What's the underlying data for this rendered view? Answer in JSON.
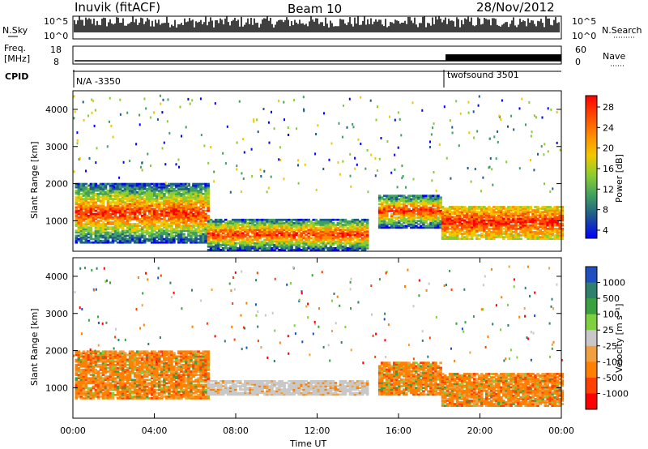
{
  "header": {
    "station": "Inuvik (fitACF)",
    "beam": "Beam 10",
    "date": "28/Nov/2012"
  },
  "strip": {
    "nsky_label": "N.Sky",
    "nsky_ticks": [
      "10^5",
      "10^0"
    ],
    "nsearch_label": "N.Search",
    "nsearch_ticks": [
      "10^5",
      "10^0"
    ],
    "freq_label": "Freq.",
    "freq_unit": "[MHz]",
    "freq_ticks": [
      "18",
      "8"
    ],
    "nave_label": "Nave",
    "nave_ticks": [
      "60",
      "0"
    ],
    "cpid_label": "CPID",
    "cpid_segments": [
      {
        "name": "N/A -3350",
        "start_hour": 0
      },
      {
        "name": "twofsound 3501",
        "start_hour": 18.2
      }
    ]
  },
  "chart_data": [
    {
      "type": "heatmap",
      "title": "",
      "ylabel": "Slant Range [km]",
      "xlabel": "",
      "xlim": [
        0,
        24
      ],
      "ylim": [
        180,
        4500
      ],
      "yticks": [
        "1000",
        "2000",
        "3000",
        "4000"
      ],
      "colorbar": {
        "label": "Power [dB]",
        "ticks": [
          "28",
          "24",
          "20",
          "16",
          "12",
          "8",
          "4"
        ],
        "colors": [
          "#ff0000",
          "#ff4a00",
          "#ff8c00",
          "#f0c800",
          "#8acd30",
          "#3fa060",
          "#1f5a8c",
          "#0000ff"
        ]
      },
      "regions": [
        {
          "x": [
            0.1,
            6.6
          ],
          "y": [
            400,
            2000
          ],
          "level": "high"
        },
        {
          "x": [
            6.6,
            14.5
          ],
          "y": [
            200,
            1050
          ],
          "level": "high"
        },
        {
          "x": [
            15.0,
            18.1
          ],
          "y": [
            800,
            1700
          ],
          "level": "high"
        },
        {
          "x": [
            18.1,
            24
          ],
          "y": [
            500,
            1400
          ],
          "level": "very-high"
        }
      ]
    },
    {
      "type": "heatmap",
      "title": "",
      "ylabel": "Slant Range [km]",
      "xlabel": "Time UT",
      "xlim": [
        0,
        24
      ],
      "ylim": [
        180,
        4500
      ],
      "xticks": [
        "00:00",
        "04:00",
        "08:00",
        "12:00",
        "16:00",
        "20:00",
        "00:00"
      ],
      "yticks": [
        "1000",
        "2000",
        "3000",
        "4000"
      ],
      "colorbar": {
        "label": "Velocity [m s⁻¹]",
        "ticks": [
          "1000",
          "500",
          "100",
          "25",
          "-25",
          "-100",
          "-500",
          "-1000"
        ],
        "colors": [
          "#2050c0",
          "#2f7f6f",
          "#3aa040",
          "#7ed040",
          "#c8c8c8",
          "#f0a040",
          "#ff8000",
          "#ff4000",
          "#ff0000"
        ]
      },
      "regions": [
        {
          "x": [
            0.1,
            6.6
          ],
          "y": [
            700,
            2000
          ],
          "level": "negative"
        },
        {
          "x": [
            6.6,
            14.5
          ],
          "y": [
            800,
            1200
          ],
          "level": "ground"
        },
        {
          "x": [
            15.0,
            18.1
          ],
          "y": [
            800,
            1700
          ],
          "level": "negative"
        },
        {
          "x": [
            18.1,
            24
          ],
          "y": [
            500,
            1400
          ],
          "level": "negative"
        }
      ]
    }
  ]
}
